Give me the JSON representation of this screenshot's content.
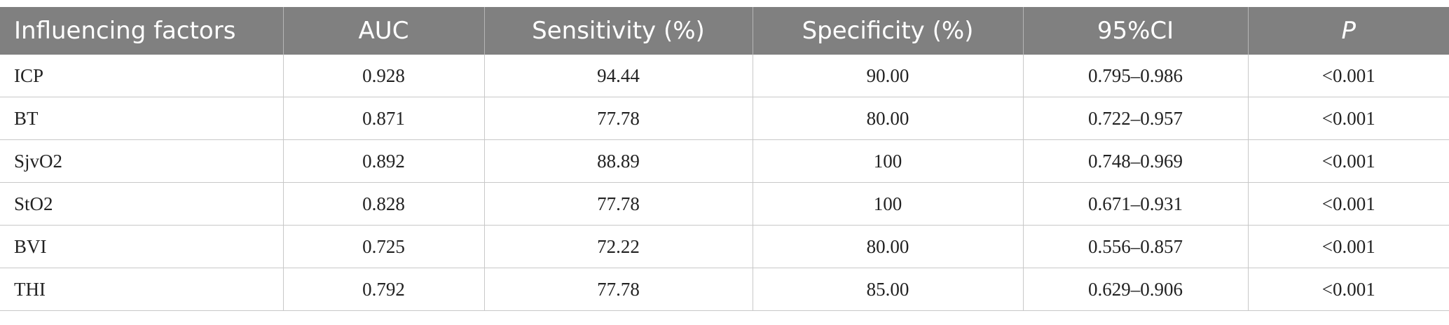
{
  "table": {
    "header": [
      "Influencing factors",
      "AUC",
      "Sensitivity (%)",
      "Specificity (%)",
      "95%CI",
      "P"
    ],
    "rows": [
      [
        "ICP",
        "0.928",
        "94.44",
        "90.00",
        "0.795–0.986",
        "<0.001"
      ],
      [
        "BT",
        "0.871",
        "77.78",
        "80.00",
        "0.722–0.957",
        "<0.001"
      ],
      [
        "SjvO2",
        "0.892",
        "88.89",
        "100",
        "0.748–0.969",
        "<0.001"
      ],
      [
        "StO2",
        "0.828",
        "77.78",
        "100",
        "0.671–0.931",
        "<0.001"
      ],
      [
        "BVI",
        "0.725",
        "72.22",
        "80.00",
        "0.556–0.857",
        "<0.001"
      ],
      [
        "THI",
        "0.792",
        "77.78",
        "85.00",
        "0.629–0.906",
        "<0.001"
      ]
    ]
  }
}
